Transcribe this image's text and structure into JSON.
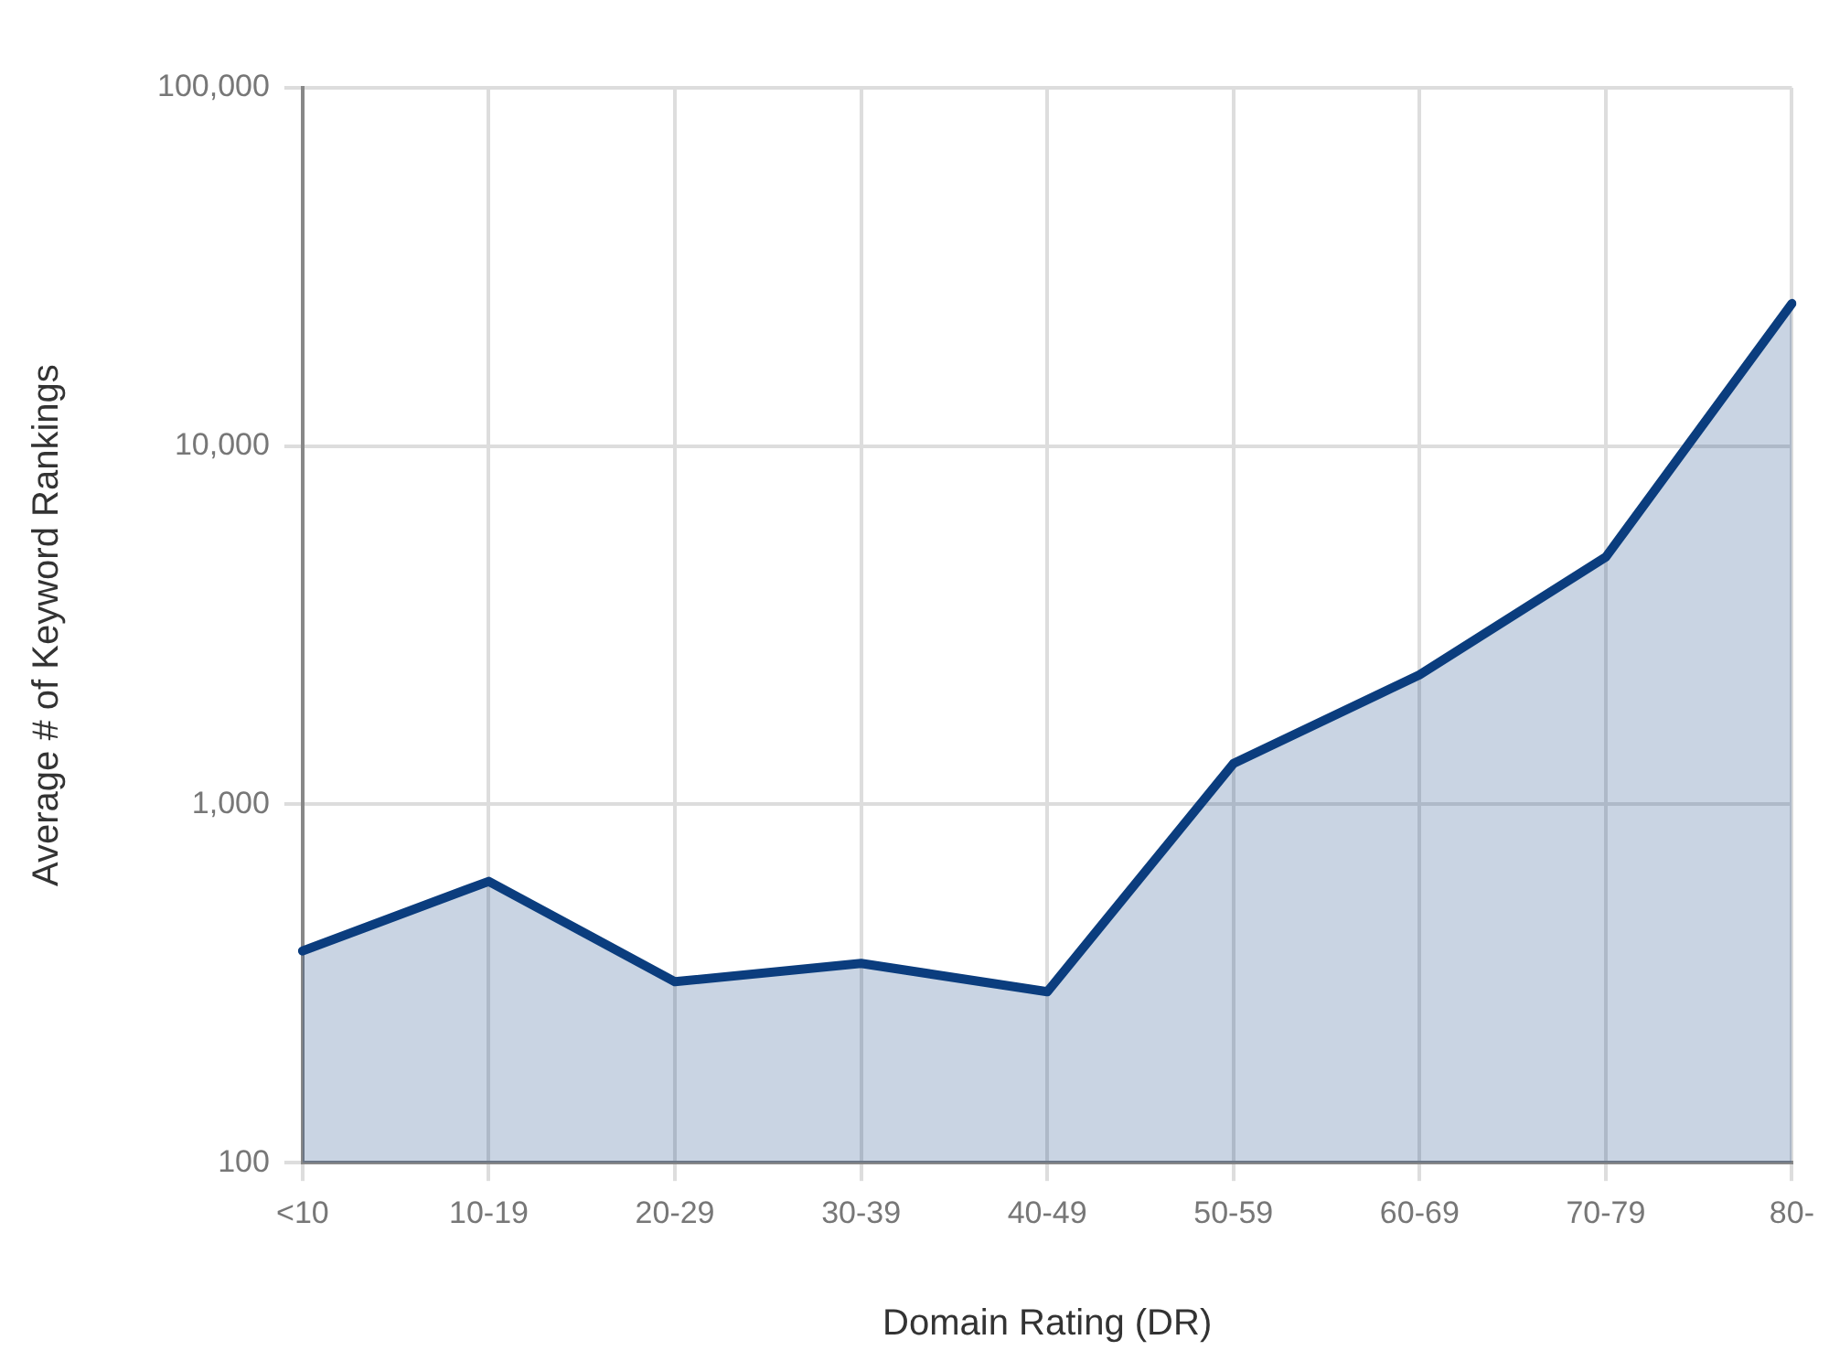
{
  "chart_data": {
    "type": "area",
    "xlabel": "Domain Rating (DR)",
    "ylabel": "Average # of Keyword Rankings",
    "categories": [
      "<10",
      "10-19",
      "20-29",
      "30-39",
      "40-49",
      "50-59",
      "60-69",
      "70-79",
      "80-"
    ],
    "series": [
      {
        "color": "#0b3d7e",
        "values": [
          390,
          610,
          320,
          360,
          300,
          1300,
          2300,
          4900,
          25000
        ]
      }
    ],
    "ylim": [
      100,
      100000
    ],
    "yticks": [
      {
        "value": 100,
        "label": "100"
      },
      {
        "value": 1000,
        "label": "1,000"
      },
      {
        "value": 10000,
        "label": "10,000"
      },
      {
        "value": 100000,
        "label": "100,000"
      }
    ],
    "log": true,
    "grid": true
  }
}
